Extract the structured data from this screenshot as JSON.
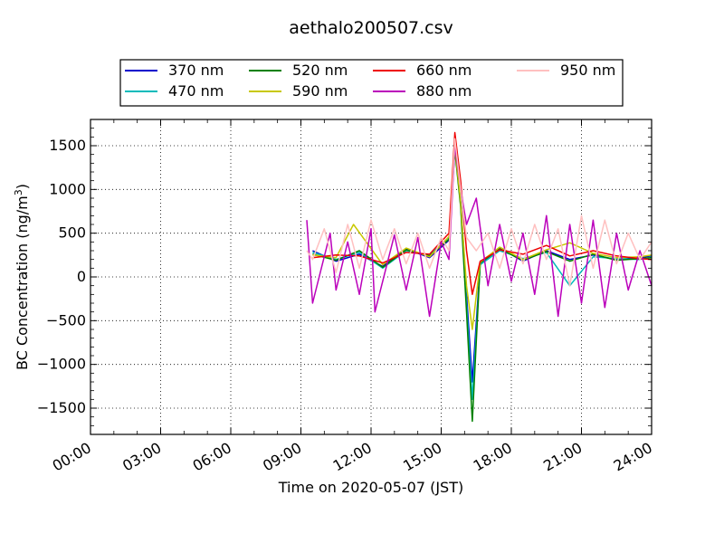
{
  "chart_data": {
    "type": "line",
    "title": "aethalo200507.csv",
    "xlabel": "Time on 2020-05-07 (JST)",
    "ylabel_main": "BC Concentration (ng/m",
    "ylabel_sup": "3",
    "ylabel_close": ")",
    "xlim": [
      "00:00",
      "24:00"
    ],
    "ylim": [
      -1800,
      1800
    ],
    "x_ticks": [
      "00:00",
      "03:00",
      "06:00",
      "09:00",
      "12:00",
      "15:00",
      "18:00",
      "21:00",
      "24:00"
    ],
    "y_ticks": [
      -1500,
      -1000,
      -500,
      0,
      500,
      1000,
      1500
    ],
    "y_tick_labels": [
      "−1500",
      "−1000",
      "−500",
      "0",
      "500",
      "1000",
      "1500"
    ],
    "grid": true,
    "legend_position": "top",
    "series": [
      {
        "name": "370 nm",
        "color": "#0000cc",
        "points": [
          [
            "09:30",
            300
          ],
          [
            "10:30",
            180
          ],
          [
            "11:30",
            260
          ],
          [
            "12:30",
            120
          ],
          [
            "13:30",
            320
          ],
          [
            "14:30",
            220
          ],
          [
            "15:20",
            420
          ],
          [
            "15:35",
            1550
          ],
          [
            "15:50",
            900
          ],
          [
            "16:05",
            -200
          ],
          [
            "16:20",
            -1200
          ],
          [
            "16:40",
            150
          ],
          [
            "17:30",
            330
          ],
          [
            "18:30",
            180
          ],
          [
            "19:30",
            300
          ],
          [
            "20:30",
            200
          ],
          [
            "21:30",
            250
          ],
          [
            "22:30",
            200
          ],
          [
            "23:30",
            220
          ],
          [
            "24:00",
            240
          ]
        ]
      },
      {
        "name": "470 nm",
        "color": "#00bbbb",
        "points": [
          [
            "09:30",
            280
          ],
          [
            "10:30",
            200
          ],
          [
            "11:30",
            280
          ],
          [
            "12:30",
            100
          ],
          [
            "13:30",
            300
          ],
          [
            "14:30",
            250
          ],
          [
            "15:20",
            450
          ],
          [
            "15:35",
            1480
          ],
          [
            "15:50",
            820
          ],
          [
            "16:05",
            -300
          ],
          [
            "16:20",
            -1400
          ],
          [
            "16:40",
            140
          ],
          [
            "17:30",
            300
          ],
          [
            "18:30",
            210
          ],
          [
            "19:30",
            280
          ],
          [
            "20:30",
            -100
          ],
          [
            "21:30",
            230
          ],
          [
            "22:30",
            210
          ],
          [
            "23:30",
            200
          ],
          [
            "24:00",
            230
          ]
        ]
      },
      {
        "name": "520 nm",
        "color": "#008000",
        "points": [
          [
            "09:30",
            260
          ],
          [
            "10:30",
            190
          ],
          [
            "11:30",
            300
          ],
          [
            "12:30",
            110
          ],
          [
            "13:30",
            310
          ],
          [
            "14:30",
            240
          ],
          [
            "15:20",
            430
          ],
          [
            "15:35",
            1450
          ],
          [
            "15:50",
            800
          ],
          [
            "16:05",
            -400
          ],
          [
            "16:20",
            -1650
          ],
          [
            "16:40",
            160
          ],
          [
            "17:30",
            320
          ],
          [
            "18:30",
            190
          ],
          [
            "19:30",
            290
          ],
          [
            "20:30",
            180
          ],
          [
            "21:30",
            260
          ],
          [
            "22:30",
            190
          ],
          [
            "23:30",
            210
          ],
          [
            "24:00",
            220
          ]
        ]
      },
      {
        "name": "590 nm",
        "color": "#c8c800",
        "points": [
          [
            "09:30",
            250
          ],
          [
            "10:30",
            220
          ],
          [
            "11:15",
            600
          ],
          [
            "12:30",
            140
          ],
          [
            "13:30",
            330
          ],
          [
            "14:30",
            230
          ],
          [
            "15:20",
            460
          ],
          [
            "15:35",
            1500
          ],
          [
            "15:50",
            850
          ],
          [
            "16:05",
            -100
          ],
          [
            "16:20",
            -600
          ],
          [
            "16:40",
            170
          ],
          [
            "17:30",
            340
          ],
          [
            "18:30",
            200
          ],
          [
            "19:30",
            310
          ],
          [
            "20:30",
            390
          ],
          [
            "21:30",
            270
          ],
          [
            "22:30",
            220
          ],
          [
            "23:30",
            230
          ],
          [
            "24:00",
            250
          ]
        ]
      },
      {
        "name": "660 nm",
        "color": "#ee0000",
        "points": [
          [
            "09:30",
            220
          ],
          [
            "10:30",
            250
          ],
          [
            "11:30",
            240
          ],
          [
            "12:30",
            160
          ],
          [
            "13:30",
            280
          ],
          [
            "14:30",
            260
          ],
          [
            "15:20",
            500
          ],
          [
            "15:35",
            1650
          ],
          [
            "15:50",
            1100
          ],
          [
            "16:05",
            300
          ],
          [
            "16:20",
            -200
          ],
          [
            "16:40",
            180
          ],
          [
            "17:30",
            310
          ],
          [
            "18:30",
            260
          ],
          [
            "19:30",
            360
          ],
          [
            "20:30",
            240
          ],
          [
            "21:30",
            300
          ],
          [
            "22:30",
            240
          ],
          [
            "23:30",
            210
          ],
          [
            "24:00",
            200
          ]
        ]
      },
      {
        "name": "880 nm",
        "color": "#bb00bb",
        "points": [
          [
            "09:15",
            650
          ],
          [
            "09:30",
            -300
          ],
          [
            "10:15",
            500
          ],
          [
            "10:30",
            -150
          ],
          [
            "11:00",
            400
          ],
          [
            "11:30",
            -200
          ],
          [
            "12:00",
            550
          ],
          [
            "12:10",
            -400
          ],
          [
            "13:00",
            480
          ],
          [
            "13:30",
            -150
          ],
          [
            "14:00",
            450
          ],
          [
            "14:30",
            -450
          ],
          [
            "15:00",
            400
          ],
          [
            "15:20",
            200
          ],
          [
            "15:35",
            1500
          ],
          [
            "15:50",
            1000
          ],
          [
            "16:05",
            600
          ],
          [
            "16:30",
            900
          ],
          [
            "17:00",
            -100
          ],
          [
            "17:30",
            600
          ],
          [
            "18:00",
            -50
          ],
          [
            "18:30",
            500
          ],
          [
            "19:00",
            -200
          ],
          [
            "19:30",
            700
          ],
          [
            "20:00",
            -450
          ],
          [
            "20:30",
            600
          ],
          [
            "21:00",
            -300
          ],
          [
            "21:30",
            650
          ],
          [
            "22:00",
            -350
          ],
          [
            "22:30",
            500
          ],
          [
            "23:00",
            -150
          ],
          [
            "23:30",
            300
          ],
          [
            "24:00",
            -100
          ]
        ]
      },
      {
        "name": "950 nm",
        "color": "#ffc0c0",
        "points": [
          [
            "09:15",
            300
          ],
          [
            "09:30",
            200
          ],
          [
            "10:00",
            550
          ],
          [
            "10:30",
            50
          ],
          [
            "11:00",
            600
          ],
          [
            "11:30",
            100
          ],
          [
            "12:00",
            650
          ],
          [
            "12:30",
            200
          ],
          [
            "13:00",
            550
          ],
          [
            "13:30",
            150
          ],
          [
            "14:00",
            500
          ],
          [
            "14:30",
            100
          ],
          [
            "15:00",
            450
          ],
          [
            "15:20",
            300
          ],
          [
            "15:35",
            1580
          ],
          [
            "15:50",
            1000
          ],
          [
            "16:05",
            450
          ],
          [
            "16:30",
            300
          ],
          [
            "17:00",
            500
          ],
          [
            "17:30",
            100
          ],
          [
            "18:00",
            550
          ],
          [
            "18:30",
            150
          ],
          [
            "19:00",
            600
          ],
          [
            "19:30",
            200
          ],
          [
            "20:00",
            550
          ],
          [
            "20:30",
            -100
          ],
          [
            "21:00",
            700
          ],
          [
            "21:30",
            100
          ],
          [
            "22:00",
            650
          ],
          [
            "22:30",
            150
          ],
          [
            "23:00",
            500
          ],
          [
            "23:30",
            200
          ],
          [
            "24:00",
            400
          ]
        ]
      }
    ]
  }
}
